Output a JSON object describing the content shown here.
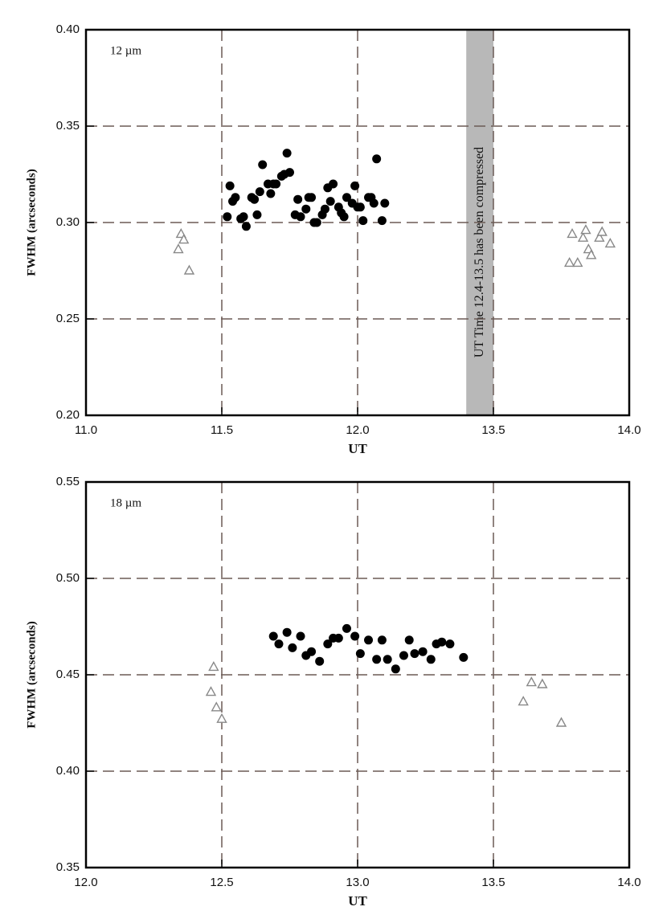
{
  "chart_data": [
    {
      "type": "scatter",
      "annotation": "12 µm",
      "xlabel": "UT",
      "ylabel": "FWHM (arcseconds)",
      "band_label": "UT Time 12.4-13.5 has been compressed",
      "xbreak": [
        12.4,
        13.5
      ],
      "band_color": "#b8b8b8",
      "xlim": [
        11.0,
        14.0
      ],
      "ylim": [
        0.2,
        0.4
      ],
      "grid": true,
      "xticks": [
        {
          "value": 11.0,
          "label": "11.0"
        },
        11.5,
        {
          "value": 12.0,
          "label": "12.0"
        },
        13.5,
        {
          "value": 14.0,
          "label": "14.0"
        }
      ],
      "yticks": [
        {
          "value": 0.2,
          "label": "0.20"
        },
        0.25,
        {
          "value": 0.3,
          "label": "0.30"
        },
        0.35,
        {
          "value": 0.4,
          "label": "0.40"
        }
      ],
      "series": [
        {
          "marker": "circle",
          "color": "#000000",
          "x": [
            11.52,
            11.53,
            11.54,
            11.55,
            11.57,
            11.58,
            11.59,
            11.61,
            11.62,
            11.63,
            11.64,
            11.65,
            11.67,
            11.68,
            11.69,
            11.7,
            11.72,
            11.73,
            11.74,
            11.75,
            11.77,
            11.78,
            11.79,
            11.81,
            11.82,
            11.83,
            11.84,
            11.85,
            11.87,
            11.88,
            11.89,
            11.9,
            11.91,
            11.93,
            11.94,
            11.95,
            11.96,
            11.98,
            11.99,
            12.0,
            12.01,
            12.02,
            12.04,
            12.05,
            12.06,
            12.07,
            12.09,
            12.1
          ],
          "values": [
            0.303,
            0.319,
            0.311,
            0.313,
            0.302,
            0.303,
            0.298,
            0.313,
            0.312,
            0.304,
            0.316,
            0.33,
            0.32,
            0.315,
            0.32,
            0.32,
            0.324,
            0.325,
            0.336,
            0.326,
            0.304,
            0.312,
            0.303,
            0.307,
            0.313,
            0.313,
            0.3,
            0.3,
            0.304,
            0.307,
            0.318,
            0.311,
            0.32,
            0.308,
            0.305,
            0.303,
            0.313,
            0.31,
            0.319,
            0.308,
            0.308,
            0.301,
            0.313,
            0.313,
            0.31,
            0.333,
            0.301,
            0.31
          ]
        },
        {
          "marker": "triangle",
          "color": "#888888",
          "x": [
            11.34,
            11.35,
            11.36,
            11.38,
            13.78,
            13.79,
            13.81,
            13.83,
            13.84,
            13.85,
            13.86,
            13.89,
            13.9,
            13.93
          ],
          "values": [
            0.286,
            0.294,
            0.291,
            0.275,
            0.279,
            0.294,
            0.279,
            0.292,
            0.296,
            0.286,
            0.283,
            0.292,
            0.295,
            0.289
          ]
        }
      ]
    },
    {
      "type": "scatter",
      "annotation": "18 µm",
      "xlabel": "UT",
      "ylabel": "FWHM (arcseconds)",
      "xlim": [
        12.0,
        14.0
      ],
      "ylim": [
        0.35,
        0.55
      ],
      "grid": true,
      "xticks": [
        {
          "value": 12.0,
          "label": "12.0"
        },
        12.5,
        {
          "value": 13.0,
          "label": "13.0"
        },
        13.5,
        {
          "value": 14.0,
          "label": "14.0"
        }
      ],
      "yticks": [
        0.35,
        {
          "value": 0.4,
          "label": "0.40"
        },
        0.45,
        {
          "value": 0.5,
          "label": "0.50"
        },
        0.55
      ],
      "series": [
        {
          "marker": "circle",
          "color": "#000000",
          "x": [
            12.69,
            12.71,
            12.74,
            12.76,
            12.79,
            12.81,
            12.83,
            12.86,
            12.89,
            12.91,
            12.93,
            12.96,
            12.99,
            13.01,
            13.04,
            13.07,
            13.09,
            13.11,
            13.14,
            13.17,
            13.19,
            13.21,
            13.24,
            13.27,
            13.29,
            13.31,
            13.34,
            13.39
          ],
          "values": [
            0.47,
            0.466,
            0.472,
            0.464,
            0.47,
            0.46,
            0.462,
            0.457,
            0.466,
            0.469,
            0.469,
            0.474,
            0.47,
            0.461,
            0.468,
            0.458,
            0.468,
            0.458,
            0.453,
            0.46,
            0.468,
            0.461,
            0.462,
            0.458,
            0.466,
            0.467,
            0.466,
            0.459
          ]
        },
        {
          "marker": "triangle",
          "color": "#888888",
          "x": [
            12.47,
            12.46,
            12.48,
            12.5,
            13.61,
            13.64,
            13.68,
            13.75
          ],
          "values": [
            0.454,
            0.441,
            0.433,
            0.427,
            0.436,
            0.446,
            0.445,
            0.425
          ]
        }
      ]
    }
  ]
}
